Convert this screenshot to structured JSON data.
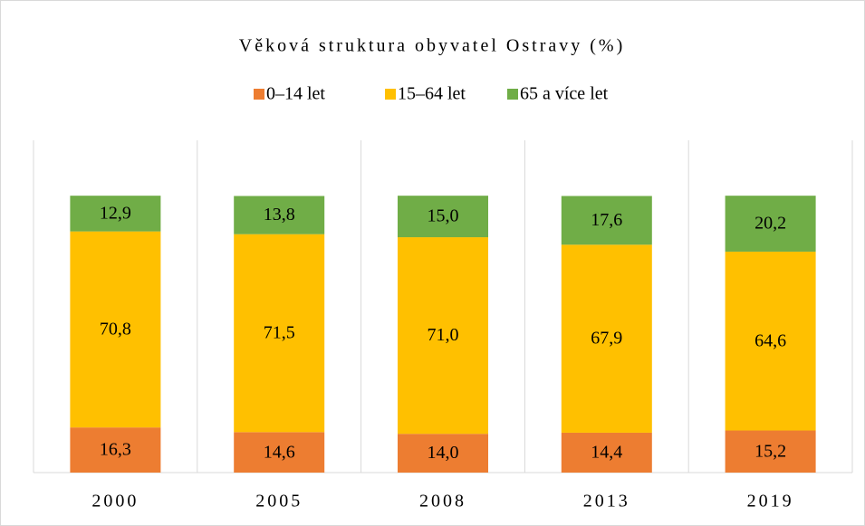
{
  "chart_data": {
    "type": "stacked-bar",
    "title": "Věková struktura obyvatel Ostravy (%)",
    "categories": [
      "2000",
      "2005",
      "2008",
      "2013",
      "2019"
    ],
    "series": [
      {
        "name": "0–14 let",
        "color": "#ED7D31",
        "values": [
          16.3,
          14.6,
          14.0,
          14.4,
          15.2
        ],
        "value_labels": [
          "16,3",
          "14,6",
          "14,0",
          "14,4",
          "15,2"
        ]
      },
      {
        "name": "15–64 let",
        "color": "#FFC000",
        "values": [
          70.8,
          71.5,
          71.0,
          67.9,
          64.6
        ],
        "value_labels": [
          "70,8",
          "71,5",
          "71,0",
          "67,9",
          "64,6"
        ]
      },
      {
        "name": "65 a více let",
        "color": "#70AD47",
        "values": [
          12.9,
          13.8,
          15.0,
          17.6,
          20.2
        ],
        "value_labels": [
          "12,9",
          "13,8",
          "15,0",
          "17,6",
          "20,2"
        ]
      }
    ],
    "ylim": [
      0,
      120
    ],
    "legend": "top"
  }
}
